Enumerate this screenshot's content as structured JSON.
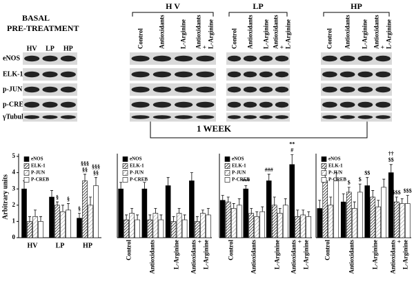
{
  "blots": {
    "basal_title": [
      "BASAL",
      "PRE-TREATMENT"
    ],
    "basal_lanes": [
      "HV",
      "LP",
      "HP"
    ],
    "rows": [
      "eNOS",
      "ELK-1",
      "p-JUN",
      "p-CREB",
      "γTubulin"
    ],
    "groups": [
      {
        "label": "H V",
        "lanes": [
          "Control",
          "Antioxidants",
          "L-Arginine",
          "Antioxidants\n+\nL-Arginine"
        ]
      },
      {
        "label": "LP",
        "lanes": [
          "Control",
          "Antioxidants",
          "L-Arginine",
          "Antioxidants\n+\nL-Arginine"
        ]
      },
      {
        "label": "HP",
        "lanes": [
          "Control",
          "Antioxidants",
          "L-Arginine",
          "Antioxidants\n+\nL-Arginine"
        ]
      }
    ],
    "period": "1 WEEK"
  },
  "chart_data": [
    {
      "type": "bar",
      "ylabel": "Arbitrary units",
      "ylim": [
        0,
        5
      ],
      "yticks": [
        0,
        1,
        2,
        3,
        4,
        5
      ],
      "legend": "upper left",
      "categories": [
        "HV",
        "LP",
        "HP"
      ],
      "series": [
        {
          "name": "eNOS",
          "color": "#000000",
          "pattern": "solid",
          "values": [
            3.0,
            2.5,
            1.2
          ],
          "errors": [
            0.5,
            0.4,
            0.3
          ]
        },
        {
          "name": "ELK-1",
          "color": "#000000",
          "pattern": "hatch",
          "values": [
            1.0,
            2.0,
            3.5
          ],
          "errors": [
            0.3,
            0.2,
            0.4
          ]
        },
        {
          "name": "P-JUN",
          "color": "#555555",
          "pattern": "light-hatch",
          "values": [
            1.3,
            1.6,
            2.0
          ],
          "errors": [
            0.4,
            0.4,
            0.5
          ]
        },
        {
          "name": "P-CREB",
          "color": "#ffffff",
          "pattern": "solid",
          "values": [
            1.0,
            1.7,
            3.2
          ],
          "errors": [
            0.3,
            0.4,
            0.5
          ]
        }
      ],
      "annotations": [
        {
          "category": 1,
          "series": 1,
          "text": "§"
        },
        {
          "category": 1,
          "series": 3,
          "text": "§"
        },
        {
          "category": 2,
          "series": 0,
          "text": "§"
        },
        {
          "category": 2,
          "series": 1,
          "text": "§§"
        },
        {
          "category": 2,
          "series": 1,
          "text": "§§§"
        },
        {
          "category": 2,
          "series": 3,
          "text": "§§"
        },
        {
          "category": 2,
          "series": 3,
          "text": "§§§"
        }
      ]
    },
    {
      "type": "bar",
      "ylim": [
        0,
        5
      ],
      "legend": "upper left",
      "categories": [
        "Control",
        "Antioxidants",
        "L-Arginine",
        "Antioxidants\n+\nL-Arginine"
      ],
      "series": [
        {
          "name": "eNOS",
          "color": "#000000",
          "pattern": "solid",
          "values": [
            3.0,
            3.0,
            3.2,
            3.5
          ],
          "errors": [
            0.4,
            0.4,
            0.5,
            0.5
          ]
        },
        {
          "name": "ELK-1",
          "color": "#000000",
          "pattern": "hatch",
          "values": [
            1.1,
            1.1,
            1.0,
            1.0
          ],
          "errors": [
            0.3,
            0.3,
            0.3,
            0.3
          ]
        },
        {
          "name": "P-JUN",
          "color": "#555555",
          "pattern": "light-hatch",
          "values": [
            1.5,
            1.5,
            1.5,
            1.5
          ],
          "errors": [
            0.3,
            0.3,
            0.3,
            0.2
          ]
        },
        {
          "name": "P-CREB",
          "color": "#ffffff",
          "pattern": "solid",
          "values": [
            1.1,
            1.1,
            1.1,
            1.4
          ],
          "errors": [
            0.3,
            0.3,
            0.3,
            0.4
          ]
        }
      ],
      "annotations": []
    },
    {
      "type": "bar",
      "ylim": [
        0,
        5
      ],
      "legend": "upper left",
      "categories": [
        "Control",
        "Antioxidants",
        "L-Arginine",
        "Antioxidants\n+\nL-Arginine"
      ],
      "series": [
        {
          "name": "eNOS",
          "color": "#000000",
          "pattern": "solid",
          "values": [
            2.3,
            3.0,
            3.5,
            4.5
          ],
          "errors": [
            0.3,
            0.2,
            0.4,
            0.6
          ]
        },
        {
          "name": "ELK-1",
          "color": "#000000",
          "pattern": "hatch",
          "values": [
            2.2,
            1.5,
            2.0,
            1.3
          ],
          "errors": [
            0.3,
            0.3,
            0.5,
            0.4
          ]
        },
        {
          "name": "P-JUN",
          "color": "#555555",
          "pattern": "light-hatch",
          "values": [
            1.8,
            1.3,
            1.5,
            1.4
          ],
          "errors": [
            0.3,
            0.3,
            0.3,
            0.3
          ]
        },
        {
          "name": "P-CREB",
          "color": "#ffffff",
          "pattern": "solid",
          "values": [
            2.0,
            1.6,
            2.0,
            1.3
          ],
          "errors": [
            0.4,
            0.3,
            0.4,
            0.3
          ]
        }
      ],
      "annotations": [
        {
          "category": 1,
          "series": 0,
          "text": "***"
        },
        {
          "category": 2,
          "series": 0,
          "text": "###"
        },
        {
          "category": 3,
          "series": 0,
          "text": "#"
        },
        {
          "category": 3,
          "series": 0,
          "text": "**"
        }
      ]
    },
    {
      "type": "bar",
      "ylim": [
        0,
        5
      ],
      "legend": "upper left",
      "categories": [
        "Control",
        "Antioxidants",
        "L-Arginine",
        "Antioxidants\n+\nL-Arginine"
      ],
      "series": [
        {
          "name": "eNOS",
          "color": "#000000",
          "pattern": "solid",
          "values": [
            1.8,
            2.2,
            3.2,
            4.0
          ],
          "errors": [
            0.5,
            0.5,
            0.5,
            0.5
          ]
        },
        {
          "name": "ELK-1",
          "color": "#000000",
          "pattern": "hatch",
          "values": [
            3.5,
            2.8,
            2.5,
            2.2
          ],
          "errors": [
            1.0,
            0.3,
            0.4,
            0.3
          ]
        },
        {
          "name": "P-JUN",
          "color": "#555555",
          "pattern": "light-hatch",
          "values": [
            2.0,
            1.8,
            1.9,
            2.1
          ],
          "errors": [
            0.5,
            0.4,
            0.4,
            0.3
          ]
        },
        {
          "name": "P-CREB",
          "color": "#ffffff",
          "pattern": "solid",
          "values": [
            3.5,
            2.8,
            3.1,
            2.1
          ],
          "errors": [
            0.5,
            0.5,
            0.5,
            0.5
          ]
        }
      ],
      "annotations": [
        {
          "category": 1,
          "series": 1,
          "text": "$"
        },
        {
          "category": 1,
          "series": 3,
          "text": "$"
        },
        {
          "category": 2,
          "series": 0,
          "text": "$$"
        },
        {
          "category": 3,
          "series": 0,
          "text": "$$"
        },
        {
          "category": 3,
          "series": 0,
          "text": "††"
        },
        {
          "category": 3,
          "series": 1,
          "text": "$$$"
        },
        {
          "category": 3,
          "series": 3,
          "text": "$$$"
        }
      ]
    }
  ]
}
